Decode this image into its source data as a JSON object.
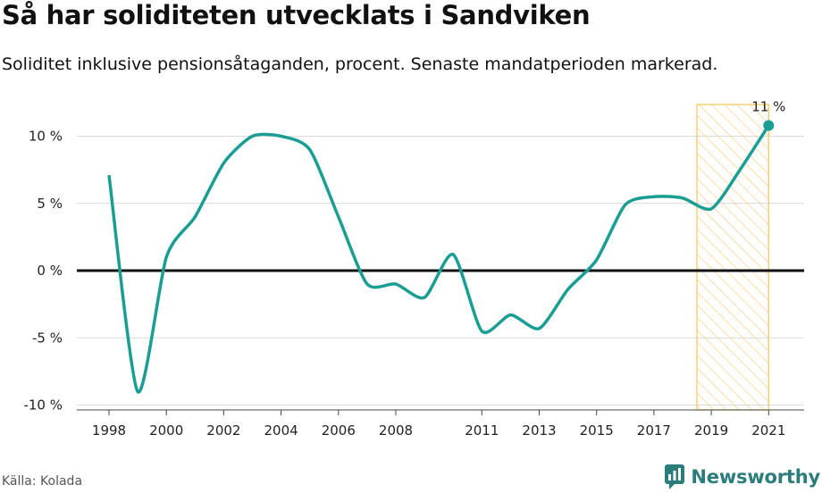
{
  "title": "Så har soliditeten utvecklats i Sandviken",
  "subtitle": "Soliditet inklusive pensionsåtaganden, procent. Senaste mandatperioden markerad.",
  "source": "Källa: Kolada",
  "brand": "Newsworthy",
  "colors": {
    "line": "#1a9e94",
    "highlight_stroke": "#f5c960",
    "zero_line": "#111111",
    "grid": "#d9d9d9"
  },
  "chart_data": {
    "type": "line",
    "x": [
      1998,
      1999,
      2000,
      2001,
      2002,
      2003,
      2004,
      2005,
      2006,
      2007,
      2008,
      2009,
      2010,
      2011,
      2012,
      2013,
      2014,
      2015,
      2016,
      2017,
      2018,
      2019,
      2020,
      2021
    ],
    "values": [
      7.1,
      -9.0,
      1.0,
      4.0,
      8.0,
      10.0,
      10.0,
      9.0,
      4.0,
      -1.0,
      -1.0,
      -2.0,
      1.2,
      -4.5,
      -3.3,
      -4.3,
      -1.4,
      0.8,
      4.9,
      5.5,
      5.4,
      4.6,
      7.5,
      10.8
    ],
    "x_tick_labels": [
      "1998",
      "2000",
      "2002",
      "2004",
      "2006",
      "2008",
      "2011",
      "2013",
      "2015",
      "2017",
      "2019",
      "2021"
    ],
    "x_ticks": [
      1998,
      2000,
      2002,
      2004,
      2006,
      2008,
      2011,
      2013,
      2015,
      2017,
      2019,
      2021
    ],
    "y_ticks": [
      10,
      5,
      0,
      -5,
      -10
    ],
    "y_tick_labels": [
      "10 %",
      "5 %",
      "0 %",
      "-5 %",
      "-10 %"
    ],
    "ylim": [
      -10,
      10
    ],
    "highlight_range": [
      2018.5,
      2021
    ],
    "end_label": "11 %",
    "grid": true
  }
}
